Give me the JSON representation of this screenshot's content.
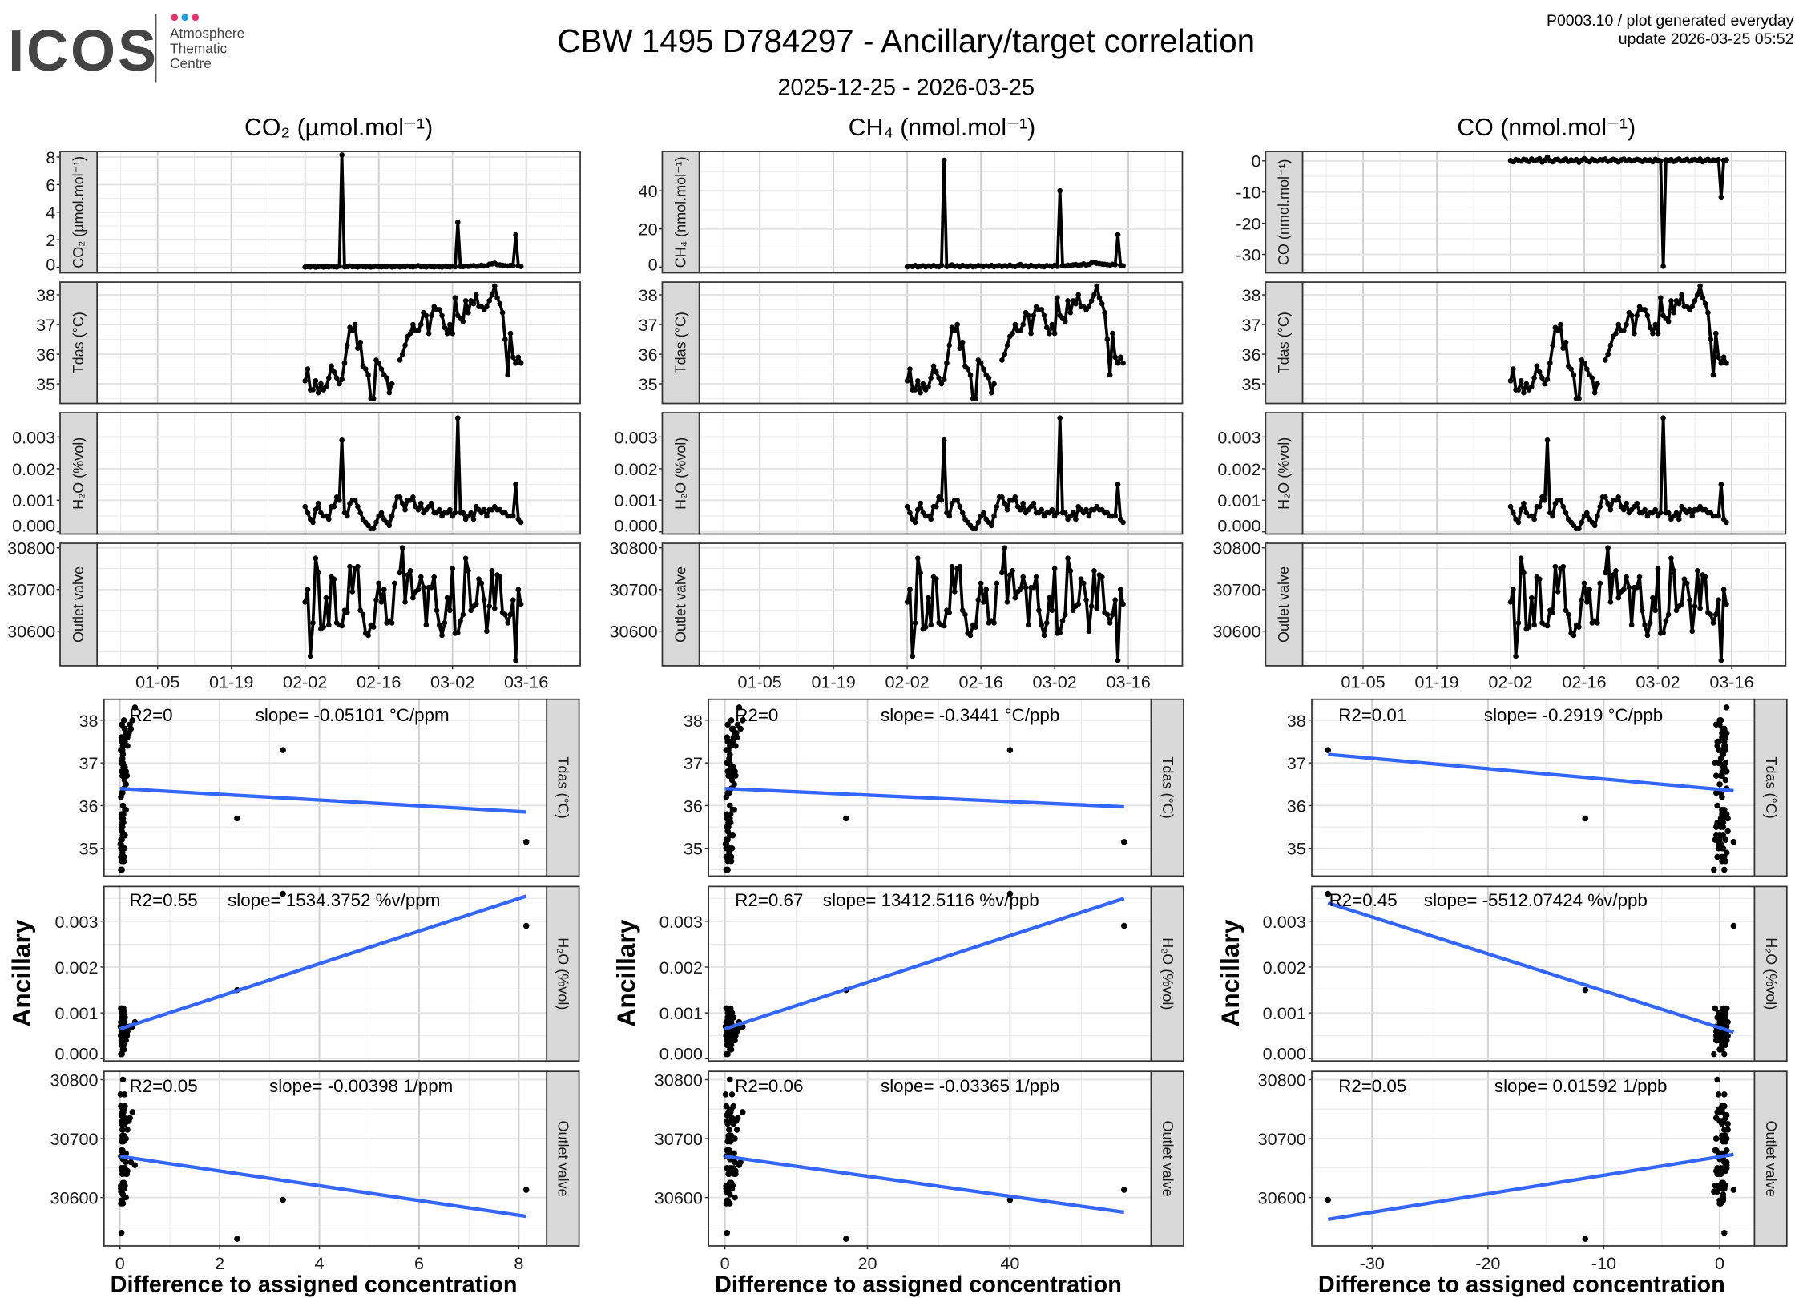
{
  "header": {
    "logo": {
      "text": "ICOS",
      "sub": [
        "Atmosphere",
        "Thematic",
        "Centre"
      ],
      "dot_colors": [
        "#e8336d",
        "#1e9fe0",
        "#e8336d"
      ]
    },
    "title": "CBW 1495 D784297 - Ancillary/target correlation",
    "subtitle": "2025-12-25 - 2026-03-25",
    "info_line1": "P0003.10 / plot generated everyday",
    "info_line2": "update  2026-03-25 05:52"
  },
  "colors": {
    "points": "#000000",
    "fit_line": "#3366ff",
    "strip_fill": "#d9d9d9"
  },
  "chart_data": {
    "type": "line+scatter",
    "columns": [
      {
        "key": "co2",
        "title": "CO₂ (µmol.mol⁻¹)",
        "strip": "CO₂ (µmol.mol⁻¹)",
        "ylim": [
          -0.4,
          8.4
        ],
        "yticks": [
          0,
          2,
          4,
          6,
          8
        ],
        "ytick_labels": [
          "0",
          "2",
          "4",
          "6",
          "8"
        ]
      },
      {
        "key": "ch4",
        "title": "CH₄ (nmol.mol⁻¹)",
        "strip": "CH₄ (nmol.mol⁻¹)",
        "ylim": [
          -3,
          60.6
        ],
        "yticks": [
          0,
          20,
          40
        ],
        "ytick_labels": [
          "0",
          "20",
          "40"
        ]
      },
      {
        "key": "co",
        "title": "CO (nmol.mol⁻¹)",
        "strip": "CO (nmol.mol⁻¹)",
        "ylim": [
          -35.9,
          3
        ],
        "yticks": [
          0,
          -10,
          -20,
          -30
        ],
        "ytick_labels": [
          "0",
          "-10",
          "-20",
          "-30"
        ]
      }
    ],
    "ancillary": [
      {
        "key": "tdas",
        "strip": "Tdas (°C)",
        "ylim_time": [
          34.34,
          38.43
        ],
        "ylim_scatter": [
          34.35,
          38.49
        ],
        "yticks": [
          35,
          36,
          37,
          38
        ],
        "ytick_labels": [
          "35",
          "36",
          "37",
          "38"
        ]
      },
      {
        "key": "h2o",
        "strip": "H₂O (%vol)",
        "ylim_time": [
          -7e-05,
          0.00377
        ],
        "ylim_scatter": [
          -5e-05,
          0.00376
        ],
        "yticks": [
          0,
          0.001,
          0.002,
          0.003
        ],
        "ytick_labels": [
          "0.000",
          "0.001",
          "0.002",
          "0.003"
        ]
      },
      {
        "key": "outlet",
        "strip": "Outlet valve",
        "ylim_time": [
          30517,
          30811
        ],
        "ylim_scatter": [
          30518,
          30814
        ],
        "yticks": [
          30600,
          30700,
          30800
        ],
        "ytick_labels": [
          "30600",
          "30700",
          "30800"
        ]
      }
    ],
    "time_axis": {
      "xlim": [
        "2025-12-24T12",
        "2026-03-26T06"
      ],
      "ticks": [
        "2026-01-05T00",
        "2026-01-19T00",
        "2026-02-02T00",
        "2026-02-16T00",
        "2026-03-02T00",
        "2026-03-16T00"
      ],
      "tick_labels": [
        "01-05",
        "01-19",
        "02-02",
        "02-16",
        "03-02",
        "03-16"
      ]
    },
    "series": {
      "time": [
        "2026-02-02T00",
        "2026-02-02T12",
        "2026-02-03T00",
        "2026-02-03T12",
        "2026-02-04T00",
        "2026-02-04T12",
        "2026-02-05T00",
        "2026-02-05T12",
        "2026-02-06T00",
        "2026-02-06T12",
        "2026-02-07T00",
        "2026-02-07T12",
        "2026-02-08T00",
        "2026-02-08T12",
        "2026-02-09T00",
        "2026-02-09T12",
        "2026-02-10T00",
        "2026-02-10T12",
        "2026-02-11T00",
        "2026-02-11T12",
        "2026-02-12T00",
        "2026-02-12T12",
        "2026-02-13T00",
        "2026-02-13T12",
        "2026-02-14T00",
        "2026-02-14T12",
        "2026-02-15T00",
        "2026-02-15T12",
        "2026-02-16T00",
        "2026-02-16T12",
        "2026-02-17T00",
        "2026-02-17T12",
        "2026-02-18T00",
        "2026-02-18T12",
        "2026-02-19T00",
        "2026-02-19T12",
        "2026-02-20T00",
        "2026-02-20T12",
        "2026-02-21T00",
        "2026-02-21T12",
        "2026-02-22T00",
        "2026-02-22T12",
        "2026-02-23T00",
        "2026-02-23T12",
        "2026-02-24T00",
        "2026-02-24T12",
        "2026-02-25T00",
        "2026-02-25T12",
        "2026-02-26T00",
        "2026-02-26T12",
        "2026-02-27T00",
        "2026-02-27T12",
        "2026-02-28T00",
        "2026-02-28T12",
        "2026-03-01T00",
        "2026-03-01T12",
        "2026-03-02T00",
        "2026-03-02T12",
        "2026-03-03T00",
        "2026-03-03T12",
        "2026-03-04T00",
        "2026-03-04T12",
        "2026-03-05T00",
        "2026-03-05T12",
        "2026-03-06T00",
        "2026-03-06T12",
        "2026-03-07T00",
        "2026-03-07T12",
        "2026-03-08T00",
        "2026-03-08T12",
        "2026-03-09T00",
        "2026-03-09T12",
        "2026-03-10T00",
        "2026-03-10T12",
        "2026-03-11T00",
        "2026-03-11T12",
        "2026-03-12T00",
        "2026-03-12T12",
        "2026-03-13T00",
        "2026-03-13T12",
        "2026-03-14T00",
        "2026-03-14T12",
        "2026-03-15T00",
        "2026-03-15T12"
      ],
      "co2": [
        0.02,
        0.05,
        0.03,
        0.08,
        0.01,
        0.04,
        0.06,
        0.02,
        0.05,
        0.03,
        0.07,
        0.04,
        0.02,
        0.09,
        8.15,
        0.03,
        0.05,
        0.1,
        0.04,
        0.06,
        0.02,
        0.08,
        0.05,
        0.03,
        0.06,
        0.02,
        0.04,
        0.07,
        0.05,
        0.03,
        0.06,
        0.04,
        0.08,
        0.02,
        0.05,
        0.07,
        0.03,
        0.06,
        0.04,
        0.09,
        0.05,
        0.03,
        0.07,
        0.12,
        0.04,
        0.06,
        0.02,
        0.08,
        0.05,
        0.03,
        0.06,
        0.04,
        0.02,
        0.07,
        0.05,
        0.03,
        0.08,
        0.04,
        3.27,
        0.06,
        0.05,
        0.09,
        0.07,
        0.1,
        0.12,
        0.08,
        0.1,
        0.15,
        0.1,
        0.12,
        0.22,
        0.25,
        0.3,
        0.2,
        0.18,
        0.15,
        0.12,
        0.1,
        0.14,
        0.12,
        2.35,
        0.1,
        0.06,
        null
      ],
      "ch4": [
        0.2,
        0.5,
        0.3,
        0.9,
        0.1,
        0.4,
        0.7,
        0.2,
        0.6,
        0.3,
        0.8,
        0.4,
        0.2,
        1.0,
        56,
        0.3,
        0.6,
        1.2,
        0.4,
        0.7,
        0.2,
        0.9,
        0.5,
        0.3,
        0.7,
        0.2,
        0.4,
        0.8,
        0.6,
        0.3,
        0.7,
        0.4,
        0.9,
        0.2,
        0.6,
        0.8,
        0.3,
        0.7,
        0.4,
        1.0,
        0.5,
        0.3,
        0.8,
        1.4,
        0.4,
        0.7,
        0.2,
        0.9,
        0.5,
        0.3,
        0.7,
        0.4,
        0.2,
        0.8,
        0.6,
        0.3,
        0.9,
        0.4,
        40,
        0.7,
        0.6,
        1.0,
        0.8,
        1.2,
        1.4,
        0.9,
        1.2,
        1.7,
        1.1,
        1.4,
        2.2,
        2.5,
        2.0,
        1.8,
        1.6,
        1.5,
        1.3,
        1.1,
        1.5,
        1.3,
        17,
        1.1,
        0.7,
        null
      ],
      "co": [
        0.1,
        -0.3,
        0.4,
        0.2,
        -0.1,
        0.5,
        0.3,
        -0.2,
        0.6,
        0.0,
        0.3,
        0.7,
        -0.4,
        0.2,
        1.2,
        0.1,
        -0.3,
        0.4,
        0.5,
        -0.1,
        0.2,
        0.6,
        -0.2,
        0.3,
        0.0,
        0.4,
        -0.5,
        0.2,
        0.7,
        0.1,
        -0.3,
        0.5,
        0.2,
        -0.1,
        0.4,
        0.3,
        0.6,
        -0.2,
        0.1,
        0.5,
        0.2,
        -0.4,
        0.3,
        0.6,
        0.0,
        0.4,
        -0.1,
        0.2,
        0.5,
        0.3,
        -0.2,
        0.4,
        0.1,
        0.3,
        -0.3,
        0.5,
        0.2,
        0.0,
        -33.8,
        0.3,
        0.1,
        0.4,
        -0.2,
        0.3,
        0.6,
        0.0,
        0.2,
        0.5,
        -0.1,
        0.3,
        0.4,
        0.1,
        0.6,
        -0.3,
        0.2,
        0.5,
        0.0,
        0.3,
        0.1,
        0.4,
        -11.6,
        0.2,
        0.3,
        null
      ],
      "tdas": [
        35.1,
        35.5,
        34.8,
        34.8,
        35.1,
        34.7,
        35.0,
        34.8,
        34.9,
        35.2,
        35.6,
        35.4,
        35.2,
        35.0,
        35.15,
        35.7,
        36.3,
        36.9,
        36.8,
        37.0,
        36.2,
        36.4,
        35.6,
        35.5,
        35.3,
        34.5,
        34.5,
        35.8,
        35.7,
        35.5,
        35.3,
        35.2,
        34.7,
        35.0,
        null,
        null,
        35.8,
        36.0,
        36.3,
        36.6,
        36.7,
        37.0,
        36.8,
        36.8,
        37.0,
        37.4,
        37.3,
        36.7,
        37.3,
        37.6,
        37.5,
        37.5,
        37.3,
        36.9,
        36.7,
        37.0,
        36.7,
        37.9,
        37.3,
        37.2,
        37.1,
        37.8,
        37.4,
        37.8,
        37.7,
        38.0,
        37.6,
        37.6,
        37.5,
        37.6,
        37.8,
        38.0,
        38.3,
        37.9,
        37.7,
        37.4,
        36.5,
        35.3,
        36.7,
        35.9,
        35.7,
        35.9,
        35.7,
        null
      ],
      "h2o": [
        0.0008,
        0.0006,
        0.0004,
        0.0003,
        0.0007,
        0.0009,
        0.0006,
        0.0005,
        0.0005,
        0.0004,
        0.0008,
        0.0008,
        0.0011,
        0.001,
        0.0029,
        0.0006,
        0.0005,
        0.0009,
        0.001,
        0.001,
        0.0008,
        0.0006,
        0.0004,
        0.0003,
        0.0002,
        0.0001,
        0.0001,
        0.0003,
        0.0005,
        0.0006,
        0.0004,
        0.0003,
        0.0002,
        0.0005,
        0.0008,
        0.0011,
        0.0011,
        0.0009,
        0.0007,
        0.001,
        0.001,
        0.0011,
        0.0008,
        0.0007,
        0.0009,
        0.0006,
        0.0007,
        0.0008,
        0.0009,
        0.0006,
        0.0006,
        0.0007,
        0.0005,
        0.0006,
        0.0006,
        0.0007,
        0.0005,
        0.0006,
        0.0036,
        0.0006,
        0.0006,
        0.0004,
        0.0005,
        0.0006,
        0.0004,
        0.0008,
        0.0007,
        0.0006,
        0.0007,
        0.0005,
        0.0007,
        0.0007,
        0.0008,
        0.0007,
        0.0007,
        0.0006,
        0.0006,
        0.0005,
        0.0005,
        0.0005,
        0.0015,
        0.0004,
        0.0003,
        null
      ],
      "outlet": [
        30670,
        30700,
        30540,
        30620,
        30775,
        30740,
        30605,
        30610,
        30680,
        30615,
        30730,
        30725,
        30620,
        30615,
        30613,
        30650,
        30645,
        30755,
        30695,
        30750,
        30755,
        30650,
        30640,
        30595,
        30590,
        30615,
        30610,
        30675,
        30715,
        30670,
        30700,
        30620,
        30625,
        30620,
        30715,
        null,
        30740,
        30800,
        30670,
        30735,
        30745,
        30680,
        30695,
        30700,
        30730,
        30705,
        30615,
        30705,
        30705,
        30730,
        30650,
        30615,
        30590,
        30620,
        30680,
        30650,
        30750,
        30595,
        30596,
        30625,
        30640,
        30775,
        30745,
        30650,
        30660,
        30665,
        30725,
        30715,
        30675,
        30600,
        30660,
        30745,
        30655,
        30735,
        30730,
        30645,
        30640,
        30620,
        30640,
        30675,
        30530,
        30700,
        30665,
        null
      ]
    },
    "scatter": {
      "xlabel": "Difference to assigned concentration",
      "ylabel": "Ancillary",
      "columns": [
        {
          "xlim": [
            -0.32,
            8.56
          ],
          "xticks": [
            0,
            2,
            4,
            6,
            8
          ],
          "xtick_labels": [
            "0",
            "2",
            "4",
            "6",
            "8"
          ],
          "panels": [
            {
              "r2": "R2=0",
              "slope": "slope= -0.05101 °C/ppm",
              "fit_line": [
                [
                  0,
                  36.4
                ],
                [
                  8.15,
                  35.85
                ]
              ]
            },
            {
              "r2": "R2=0.55",
              "slope": "slope= 1534.3752 %v/ppm",
              "fit_line": [
                [
                  0,
                  0.00065
                ],
                [
                  8.15,
                  0.00355
                ]
              ]
            },
            {
              "r2": "R2=0.05",
              "slope": "slope= -0.00398 1/ppm",
              "fit_line": [
                [
                  0,
                  30670
                ],
                [
                  8.15,
                  30568
                ]
              ]
            }
          ]
        },
        {
          "xlim": [
            -2.3,
            59.8
          ],
          "xticks": [
            0,
            20,
            40
          ],
          "xtick_labels": [
            "0",
            "20",
            "40"
          ],
          "panels": [
            {
              "r2": "R2=0",
              "slope": "slope= -0.3441 °C/ppb",
              "fit_line": [
                [
                  0,
                  36.4
                ],
                [
                  56,
                  35.97
                ]
              ]
            },
            {
              "r2": "R2=0.67",
              "slope": "slope= 13412.5116 %v/ppb",
              "fit_line": [
                [
                  0,
                  0.00065
                ],
                [
                  56,
                  0.0035
                ]
              ]
            },
            {
              "r2": "R2=0.06",
              "slope": "slope= -0.03365 1/ppb",
              "fit_line": [
                [
                  0,
                  30670
                ],
                [
                  56,
                  30575
                ]
              ]
            }
          ]
        },
        {
          "xlim": [
            -35.2,
            3.0
          ],
          "xticks": [
            -30,
            -20,
            -10,
            0
          ],
          "xtick_labels": [
            "-30",
            "-20",
            "-10",
            "0"
          ],
          "panels": [
            {
              "r2": "R2=0.01",
              "slope": "slope= -0.2919 °C/ppb",
              "fit_line": [
                [
                  -33.8,
                  37.2
                ],
                [
                  1.2,
                  36.35
                ]
              ]
            },
            {
              "r2": "R2=0.45",
              "slope": "slope= -5512.07424 %v/ppb",
              "fit_line": [
                [
                  -33.8,
                  0.0034
                ],
                [
                  1.2,
                  0.00058
                ]
              ]
            },
            {
              "r2": "R2=0.05",
              "slope": "slope= 0.01592 1/ppb",
              "fit_line": [
                [
                  -33.8,
                  30563
                ],
                [
                  1.2,
                  30673
                ]
              ]
            }
          ]
        }
      ]
    },
    "grid": true
  }
}
